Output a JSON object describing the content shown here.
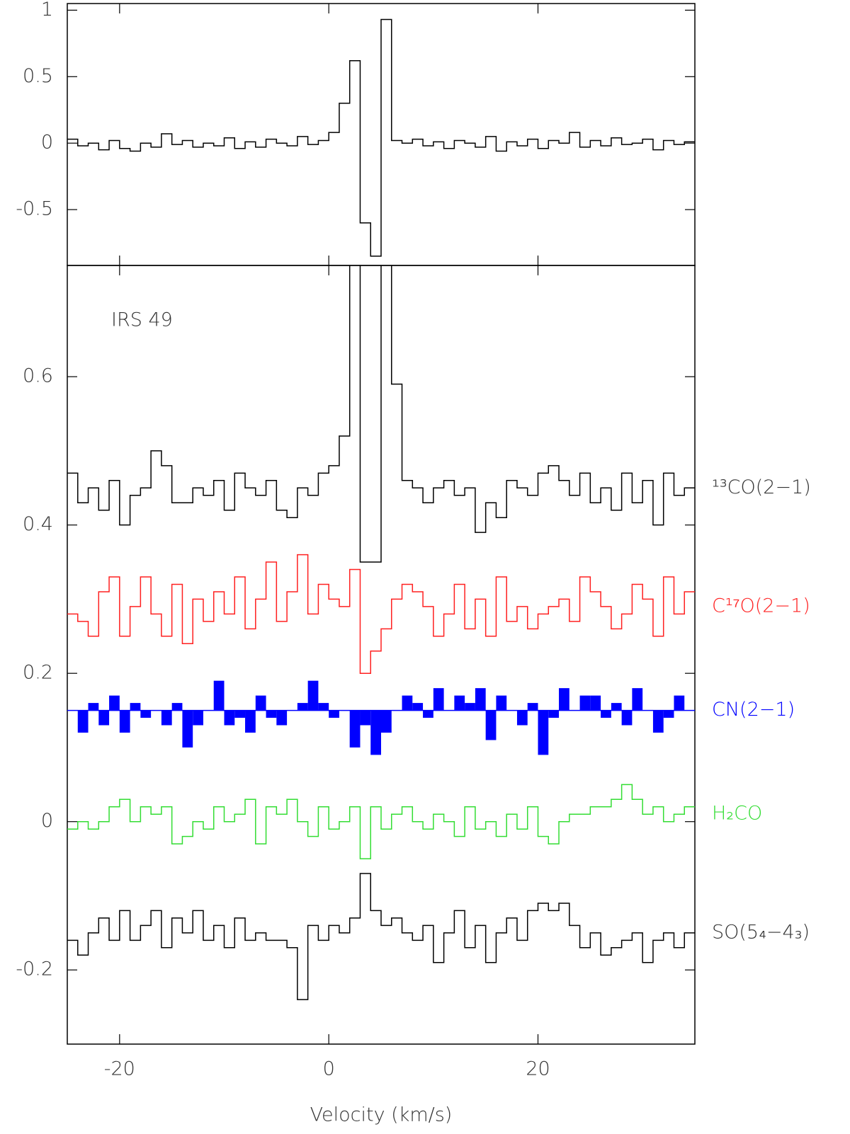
{
  "chart_data": [
    {
      "type": "step",
      "x": [
        -24.5,
        -23.5,
        -22.5,
        -21.5,
        -20.5,
        -19.5,
        -18.5,
        -17.5,
        -16.5,
        -15.5,
        -14.5,
        -13.5,
        -12.5,
        -11.5,
        -10.5,
        -9.5,
        -8.5,
        -7.5,
        -6.5,
        -5.5,
        -4.5,
        -3.5,
        -2.5,
        -1.5,
        -0.5,
        0.5,
        1.5,
        2.5,
        3.5,
        4.5,
        5.5,
        6.5,
        7.5,
        8.5,
        9.5,
        10.5,
        11.5,
        12.5,
        13.5,
        14.5,
        15.5,
        16.5,
        17.5,
        18.5,
        19.5,
        20.5,
        21.5,
        22.5,
        23.5,
        24.5,
        25.5,
        26.5,
        27.5,
        28.5,
        29.5,
        30.5,
        31.5,
        32.5,
        33.5,
        34.5
      ],
      "series": [
        {
          "color": "#000000",
          "style": "step",
          "values": [
            0.03,
            -0.02,
            0.0,
            -0.05,
            0.02,
            -0.04,
            -0.06,
            0.0,
            -0.03,
            0.07,
            -0.01,
            0.02,
            -0.03,
            0.0,
            -0.02,
            0.04,
            -0.04,
            0.01,
            -0.03,
            0.03,
            0.0,
            -0.02,
            0.05,
            -0.01,
            0.02,
            0.08,
            0.3,
            0.62,
            -0.6,
            -0.85,
            0.93,
            0.02,
            0.0,
            0.03,
            -0.02,
            0.01,
            -0.04,
            0.02,
            0.0,
            -0.03,
            0.05,
            -0.06,
            0.01,
            -0.02,
            0.03,
            -0.04,
            0.02,
            0.0,
            0.08,
            -0.03,
            0.02,
            -0.02,
            0.04,
            -0.01,
            0.0,
            0.03,
            -0.05,
            0.02,
            -0.01,
            0.01
          ]
        }
      ],
      "xlim": [
        -25,
        35
      ],
      "xticks": [
        -20,
        0,
        20
      ],
      "xtick_labels": false,
      "ylim": [
        -0.92,
        1.05
      ],
      "yticks": [
        -0.5,
        0,
        0.5,
        1
      ]
    },
    {
      "type": "step",
      "x": [
        -24.5,
        -23.5,
        -22.5,
        -21.5,
        -20.5,
        -19.5,
        -18.5,
        -17.5,
        -16.5,
        -15.5,
        -14.5,
        -13.5,
        -12.5,
        -11.5,
        -10.5,
        -9.5,
        -8.5,
        -7.5,
        -6.5,
        -5.5,
        -4.5,
        -3.5,
        -2.5,
        -1.5,
        -0.5,
        0.5,
        1.5,
        2.5,
        3.5,
        4.5,
        5.5,
        6.5,
        7.5,
        8.5,
        9.5,
        10.5,
        11.5,
        12.5,
        13.5,
        14.5,
        15.5,
        16.5,
        17.5,
        18.5,
        19.5,
        20.5,
        21.5,
        22.5,
        23.5,
        24.5,
        25.5,
        26.5,
        27.5,
        28.5,
        29.5,
        30.5,
        31.5,
        32.5,
        33.5,
        34.5
      ],
      "annotation": "IRS 49",
      "xlabel": "Velocity (km/s)",
      "series": [
        {
          "name": "¹³CO(2−1)",
          "color": "#000000",
          "style": "step",
          "values": [
            0.47,
            0.43,
            0.45,
            0.42,
            0.46,
            0.4,
            0.44,
            0.45,
            0.5,
            0.48,
            0.43,
            0.43,
            0.45,
            0.44,
            0.46,
            0.42,
            0.47,
            0.45,
            0.44,
            0.46,
            0.42,
            0.41,
            0.45,
            0.44,
            0.47,
            0.48,
            0.52,
            0.9,
            0.35,
            0.35,
            0.9,
            0.59,
            0.46,
            0.45,
            0.43,
            0.45,
            0.46,
            0.44,
            0.45,
            0.39,
            0.43,
            0.41,
            0.46,
            0.45,
            0.44,
            0.47,
            0.48,
            0.46,
            0.44,
            0.47,
            0.43,
            0.45,
            0.42,
            0.47,
            0.43,
            0.46,
            0.4,
            0.47,
            0.44,
            0.45
          ]
        },
        {
          "name": "C¹⁷O(2−1)",
          "color": "#ff2020",
          "style": "step",
          "values": [
            0.28,
            0.27,
            0.25,
            0.31,
            0.33,
            0.25,
            0.29,
            0.33,
            0.28,
            0.25,
            0.32,
            0.24,
            0.3,
            0.27,
            0.31,
            0.28,
            0.33,
            0.26,
            0.3,
            0.35,
            0.27,
            0.31,
            0.36,
            0.28,
            0.32,
            0.3,
            0.29,
            0.34,
            0.2,
            0.23,
            0.26,
            0.3,
            0.32,
            0.31,
            0.29,
            0.25,
            0.28,
            0.32,
            0.26,
            0.3,
            0.25,
            0.33,
            0.27,
            0.29,
            0.26,
            0.28,
            0.29,
            0.3,
            0.27,
            0.33,
            0.31,
            0.29,
            0.26,
            0.28,
            0.32,
            0.3,
            0.25,
            0.33,
            0.28,
            0.31
          ]
        },
        {
          "name": "CN(2−1)",
          "color": "#0000ff",
          "style": "fill",
          "fill_base": 0.15,
          "values": [
            0.15,
            0.12,
            0.16,
            0.13,
            0.17,
            0.12,
            0.16,
            0.14,
            0.15,
            0.13,
            0.16,
            0.1,
            0.13,
            0.15,
            0.19,
            0.13,
            0.14,
            0.12,
            0.17,
            0.14,
            0.13,
            0.15,
            0.16,
            0.19,
            0.16,
            0.14,
            0.15,
            0.1,
            0.13,
            0.09,
            0.12,
            0.15,
            0.17,
            0.16,
            0.14,
            0.18,
            0.15,
            0.17,
            0.16,
            0.18,
            0.11,
            0.17,
            0.15,
            0.13,
            0.16,
            0.09,
            0.14,
            0.18,
            0.15,
            0.17,
            0.17,
            0.14,
            0.16,
            0.13,
            0.18,
            0.15,
            0.12,
            0.14,
            0.17,
            0.15
          ]
        },
        {
          "name": "H₂CO",
          "color": "#33dd33",
          "style": "step",
          "values": [
            -0.01,
            0.0,
            -0.01,
            0.0,
            0.02,
            0.03,
            0.0,
            0.02,
            0.01,
            0.02,
            -0.03,
            -0.02,
            0.0,
            -0.01,
            0.02,
            0.0,
            0.01,
            0.03,
            -0.03,
            0.02,
            0.01,
            0.03,
            0.0,
            -0.02,
            0.02,
            -0.01,
            0.0,
            0.02,
            -0.05,
            0.02,
            -0.01,
            0.01,
            0.02,
            0.0,
            -0.01,
            0.01,
            0.0,
            -0.02,
            0.02,
            -0.01,
            0.0,
            -0.02,
            0.01,
            -0.01,
            0.02,
            -0.02,
            -0.03,
            0.0,
            0.01,
            0.01,
            0.02,
            0.02,
            0.03,
            0.05,
            0.03,
            0.01,
            0.02,
            0.0,
            0.01,
            0.02
          ]
        },
        {
          "name": "SO(5₄−4₃)",
          "color": "#000000",
          "style": "step",
          "values": [
            -0.16,
            -0.18,
            -0.15,
            -0.13,
            -0.16,
            -0.12,
            -0.16,
            -0.14,
            -0.12,
            -0.17,
            -0.13,
            -0.15,
            -0.12,
            -0.16,
            -0.14,
            -0.17,
            -0.13,
            -0.16,
            -0.15,
            -0.16,
            -0.16,
            -0.17,
            -0.24,
            -0.14,
            -0.16,
            -0.14,
            -0.15,
            -0.13,
            -0.07,
            -0.12,
            -0.14,
            -0.13,
            -0.15,
            -0.16,
            -0.14,
            -0.19,
            -0.15,
            -0.12,
            -0.17,
            -0.14,
            -0.19,
            -0.15,
            -0.13,
            -0.16,
            -0.12,
            -0.11,
            -0.12,
            -0.11,
            -0.14,
            -0.17,
            -0.15,
            -0.18,
            -0.17,
            -0.16,
            -0.15,
            -0.19,
            -0.16,
            -0.15,
            -0.17,
            -0.15
          ]
        }
      ],
      "xlim": [
        -25,
        35
      ],
      "xticks": [
        -20,
        0,
        20
      ],
      "xtick_labels": true,
      "ylim": [
        -0.3,
        0.75
      ],
      "yticks": [
        -0.2,
        0,
        0.2,
        0.4,
        0.6
      ]
    }
  ]
}
